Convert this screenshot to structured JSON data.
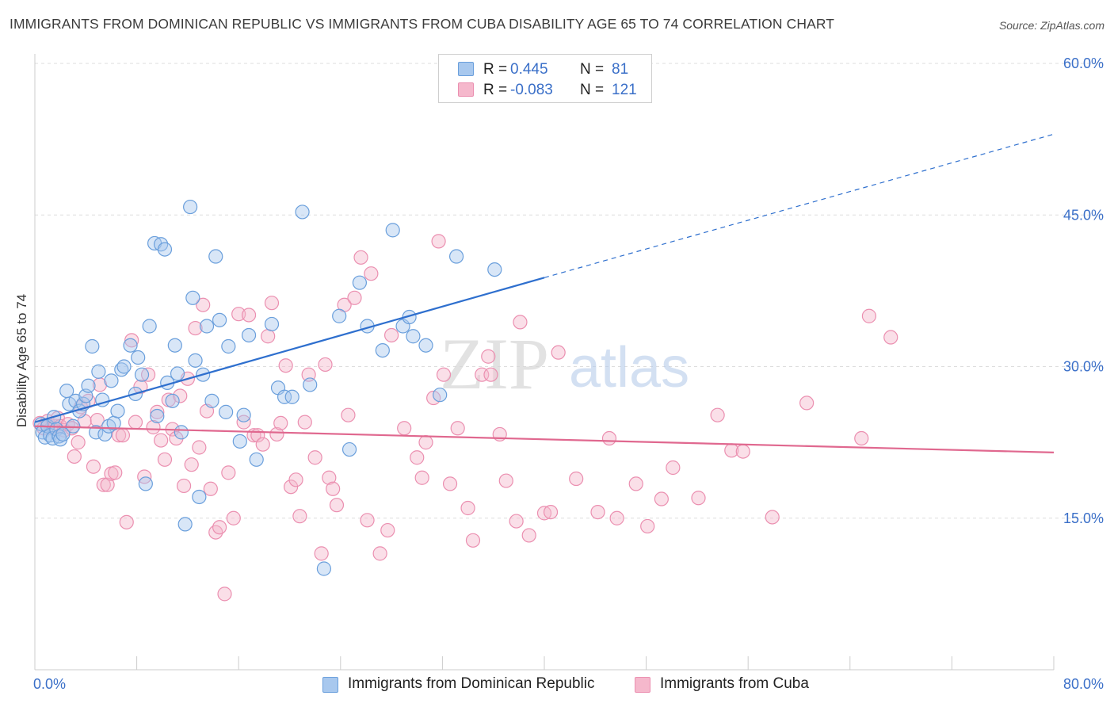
{
  "title": "IMMIGRANTS FROM DOMINICAN REPUBLIC VS IMMIGRANTS FROM CUBA DISABILITY AGE 65 TO 74 CORRELATION CHART",
  "source": "Source: ZipAtlas.com",
  "watermark": {
    "zip": "ZIP",
    "atlas": "atlas"
  },
  "legend_top": {
    "rows": [
      {
        "r_label": "R =",
        "r_value": "0.445",
        "n_label": "N =",
        "n_value": "81"
      },
      {
        "r_label": "R =",
        "r_value": "-0.083",
        "n_label": "N =",
        "n_value": "121"
      }
    ]
  },
  "legend_bottom": {
    "items": [
      "Immigrants from Dominican Republic",
      "Immigrants from Cuba"
    ]
  },
  "colors": {
    "blue_fill": "#a8c8ee",
    "blue_stroke": "#6a9fdc",
    "blue_line": "#2e6fce",
    "pink_fill": "#f5b8cc",
    "pink_stroke": "#eb8fb0",
    "pink_line": "#e0688f",
    "axis_text": "#3a6fc8",
    "grid": "#dddddd"
  },
  "chart_data": {
    "type": "scatter",
    "title": "IMMIGRANTS FROM DOMINICAN REPUBLIC VS IMMIGRANTS FROM CUBA DISABILITY AGE 65 TO 74 CORRELATION CHART",
    "xlabel": "",
    "ylabel": "Disability Age 65 to 74",
    "xlim": [
      0,
      80
    ],
    "ylim": [
      0,
      60
    ],
    "x_tick_labels": [
      "0.0%",
      "80.0%"
    ],
    "y_ticks": [
      15,
      30,
      45,
      60
    ],
    "y_tick_labels": [
      "15.0%",
      "30.0%",
      "45.0%",
      "60.0%"
    ],
    "grid": "horizontal dashed",
    "legend_position": "top-center and bottom",
    "series": [
      {
        "name": "Immigrants from Dominican Republic",
        "R": 0.445,
        "N": 81,
        "trend": {
          "x0": 0,
          "y0": 24.5,
          "x1": 40,
          "y1": 38.8,
          "dashed_to_x": 80,
          "dashed_to_y": 53.0
        },
        "points": [
          [
            0.5,
            24.3
          ],
          [
            0.6,
            23.5
          ],
          [
            0.8,
            23.0
          ],
          [
            1.0,
            24.1
          ],
          [
            1.2,
            23.2
          ],
          [
            1.4,
            22.9
          ],
          [
            1.5,
            25.0
          ],
          [
            1.7,
            23.8
          ],
          [
            1.9,
            23.1
          ],
          [
            2.0,
            22.8
          ],
          [
            2.2,
            23.3
          ],
          [
            2.5,
            27.6
          ],
          [
            2.7,
            26.3
          ],
          [
            3.0,
            24.1
          ],
          [
            3.2,
            26.6
          ],
          [
            3.5,
            25.6
          ],
          [
            3.8,
            26.3
          ],
          [
            4.0,
            27.1
          ],
          [
            4.2,
            28.1
          ],
          [
            4.5,
            32.0
          ],
          [
            4.8,
            23.5
          ],
          [
            5.0,
            29.5
          ],
          [
            5.3,
            26.7
          ],
          [
            5.5,
            23.3
          ],
          [
            5.8,
            24.1
          ],
          [
            6.0,
            28.6
          ],
          [
            6.2,
            24.4
          ],
          [
            6.5,
            25.6
          ],
          [
            6.8,
            29.7
          ],
          [
            7.0,
            30.0
          ],
          [
            7.5,
            32.1
          ],
          [
            7.9,
            27.3
          ],
          [
            8.1,
            30.9
          ],
          [
            8.4,
            29.2
          ],
          [
            8.7,
            18.4
          ],
          [
            9.0,
            34.0
          ],
          [
            9.4,
            42.2
          ],
          [
            9.6,
            25.1
          ],
          [
            9.9,
            42.1
          ],
          [
            10.2,
            41.6
          ],
          [
            10.4,
            28.4
          ],
          [
            10.8,
            26.6
          ],
          [
            11.0,
            32.1
          ],
          [
            11.2,
            29.3
          ],
          [
            11.5,
            23.5
          ],
          [
            11.8,
            14.4
          ],
          [
            12.2,
            45.8
          ],
          [
            12.4,
            36.8
          ],
          [
            12.6,
            30.6
          ],
          [
            12.9,
            17.1
          ],
          [
            13.2,
            29.2
          ],
          [
            13.5,
            34.0
          ],
          [
            13.9,
            26.6
          ],
          [
            14.2,
            40.9
          ],
          [
            14.5,
            34.6
          ],
          [
            15.0,
            25.5
          ],
          [
            15.2,
            32.0
          ],
          [
            16.1,
            22.6
          ],
          [
            16.4,
            25.2
          ],
          [
            16.8,
            33.1
          ],
          [
            17.4,
            20.8
          ],
          [
            18.6,
            34.2
          ],
          [
            19.1,
            27.9
          ],
          [
            19.6,
            27.0
          ],
          [
            20.2,
            27.0
          ],
          [
            21.0,
            45.3
          ],
          [
            21.6,
            28.2
          ],
          [
            22.7,
            10.0
          ],
          [
            23.9,
            35.0
          ],
          [
            24.7,
            21.8
          ],
          [
            25.5,
            38.3
          ],
          [
            26.1,
            34.0
          ],
          [
            27.3,
            31.6
          ],
          [
            28.1,
            43.5
          ],
          [
            28.9,
            34.0
          ],
          [
            29.4,
            34.9
          ],
          [
            29.7,
            33.0
          ],
          [
            30.7,
            32.1
          ],
          [
            31.8,
            27.2
          ],
          [
            33.1,
            40.9
          ],
          [
            36.1,
            39.6
          ]
        ]
      },
      {
        "name": "Immigrants from Cuba",
        "R": -0.083,
        "N": 121,
        "trend": {
          "x0": 0,
          "y0": 24.1,
          "x1": 80,
          "y1": 21.5
        },
        "points": [
          [
            0.4,
            24.4
          ],
          [
            0.7,
            23.9
          ],
          [
            1.0,
            24.6
          ],
          [
            1.3,
            23.9
          ],
          [
            1.6,
            24.1
          ],
          [
            1.8,
            24.9
          ],
          [
            2.0,
            24.1
          ],
          [
            2.3,
            23.7
          ],
          [
            2.6,
            24.3
          ],
          [
            2.9,
            23.9
          ],
          [
            3.1,
            21.1
          ],
          [
            3.4,
            22.5
          ],
          [
            3.6,
            26.0
          ],
          [
            3.9,
            24.6
          ],
          [
            4.2,
            26.6
          ],
          [
            4.6,
            20.1
          ],
          [
            4.9,
            24.7
          ],
          [
            5.1,
            28.2
          ],
          [
            5.4,
            18.3
          ],
          [
            5.7,
            18.3
          ],
          [
            6.0,
            19.4
          ],
          [
            6.3,
            19.5
          ],
          [
            6.6,
            23.2
          ],
          [
            6.9,
            23.2
          ],
          [
            7.2,
            14.6
          ],
          [
            7.6,
            32.6
          ],
          [
            7.9,
            24.5
          ],
          [
            8.3,
            28.0
          ],
          [
            8.6,
            19.1
          ],
          [
            8.9,
            29.2
          ],
          [
            9.3,
            24.0
          ],
          [
            9.6,
            25.5
          ],
          [
            9.9,
            22.7
          ],
          [
            10.2,
            20.8
          ],
          [
            10.5,
            26.7
          ],
          [
            10.8,
            23.8
          ],
          [
            11.1,
            22.9
          ],
          [
            11.4,
            27.1
          ],
          [
            11.7,
            18.2
          ],
          [
            12.0,
            28.8
          ],
          [
            12.3,
            20.3
          ],
          [
            12.6,
            33.8
          ],
          [
            12.9,
            22.0
          ],
          [
            13.2,
            36.1
          ],
          [
            13.5,
            25.6
          ],
          [
            13.8,
            17.9
          ],
          [
            14.2,
            13.6
          ],
          [
            14.5,
            14.1
          ],
          [
            14.9,
            7.5
          ],
          [
            15.2,
            19.5
          ],
          [
            15.6,
            15.0
          ],
          [
            16.0,
            35.2
          ],
          [
            16.4,
            24.5
          ],
          [
            16.8,
            35.1
          ],
          [
            17.2,
            23.2
          ],
          [
            17.5,
            23.2
          ],
          [
            17.9,
            22.3
          ],
          [
            18.3,
            33.0
          ],
          [
            18.6,
            36.3
          ],
          [
            19.0,
            23.3
          ],
          [
            19.3,
            24.4
          ],
          [
            19.7,
            30.1
          ],
          [
            20.1,
            18.1
          ],
          [
            20.5,
            18.8
          ],
          [
            20.8,
            15.2
          ],
          [
            21.2,
            24.5
          ],
          [
            21.5,
            29.2
          ],
          [
            22.0,
            21.0
          ],
          [
            22.5,
            11.5
          ],
          [
            22.8,
            30.2
          ],
          [
            23.1,
            19.0
          ],
          [
            23.4,
            17.9
          ],
          [
            23.7,
            16.3
          ],
          [
            24.3,
            36.1
          ],
          [
            24.6,
            25.2
          ],
          [
            25.1,
            36.8
          ],
          [
            25.6,
            40.8
          ],
          [
            26.1,
            14.8
          ],
          [
            26.4,
            39.2
          ],
          [
            27.1,
            11.5
          ],
          [
            27.7,
            13.8
          ],
          [
            28.0,
            33.1
          ],
          [
            29.0,
            23.9
          ],
          [
            30.0,
            21.0
          ],
          [
            30.4,
            19.0
          ],
          [
            30.7,
            22.5
          ],
          [
            31.3,
            26.9
          ],
          [
            31.7,
            42.4
          ],
          [
            32.1,
            29.2
          ],
          [
            32.6,
            18.4
          ],
          [
            33.2,
            23.9
          ],
          [
            34.0,
            16.0
          ],
          [
            34.4,
            12.8
          ],
          [
            35.1,
            29.2
          ],
          [
            35.6,
            31.0
          ],
          [
            35.8,
            29.2
          ],
          [
            36.5,
            23.3
          ],
          [
            37.0,
            18.7
          ],
          [
            37.8,
            14.7
          ],
          [
            38.1,
            34.4
          ],
          [
            38.8,
            13.3
          ],
          [
            40.0,
            15.5
          ],
          [
            40.5,
            15.6
          ],
          [
            41.1,
            31.4
          ],
          [
            42.5,
            18.9
          ],
          [
            44.2,
            15.6
          ],
          [
            45.1,
            22.9
          ],
          [
            45.7,
            15.0
          ],
          [
            47.2,
            18.4
          ],
          [
            48.1,
            14.2
          ],
          [
            49.2,
            16.9
          ],
          [
            50.1,
            20.0
          ],
          [
            52.1,
            17.0
          ],
          [
            53.6,
            25.2
          ],
          [
            54.7,
            21.7
          ],
          [
            55.6,
            21.6
          ],
          [
            57.9,
            15.1
          ],
          [
            60.6,
            26.4
          ],
          [
            64.9,
            22.9
          ],
          [
            65.5,
            35.0
          ],
          [
            67.2,
            32.9
          ]
        ]
      }
    ]
  }
}
